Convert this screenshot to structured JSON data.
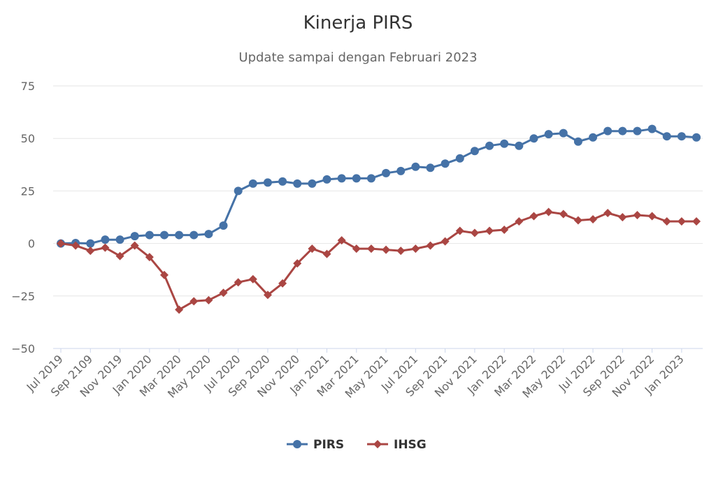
{
  "chart_data": {
    "type": "line",
    "title": "Kinerja PIRS",
    "subtitle": "Update sampai dengan Februari 2023",
    "xlabel": "",
    "ylabel": "",
    "ylim": [
      -50,
      75
    ],
    "yticks": [
      75,
      50,
      25,
      0,
      -25,
      -50
    ],
    "ytick_labels": [
      "75",
      "50",
      "25",
      "0",
      "−25",
      "−50"
    ],
    "grid": true,
    "legend_position": "bottom-center",
    "xtick_labels": [
      "Jul 2019",
      "Sep 2109",
      "Nov 2019",
      "Jan 2020",
      "Mar 2020",
      "May 2020",
      "Jul 2020",
      "Sep 2020",
      "Nov 2020",
      "Jan 2021",
      "Mar 2021",
      "May 2021",
      "Jul 2021",
      "Sep 2021",
      "Nov 2021",
      "Jan 2022",
      "Mar 2022",
      "May 2022",
      "Jul 2022",
      "Sep 2022",
      "Nov 2022",
      "Jan 2023"
    ],
    "x_count": 44,
    "series": [
      {
        "name": "PIRS",
        "color": "#4572a7",
        "marker": "circle",
        "values": [
          0,
          0.2,
          0,
          1.8,
          1.8,
          3.5,
          4,
          4,
          4,
          4,
          4.5,
          8.5,
          25,
          28.5,
          29,
          29.5,
          28.5,
          28.5,
          30.5,
          31,
          31,
          31,
          33.5,
          34.5,
          36.5,
          36,
          38,
          40.5,
          44,
          46.5,
          47.5,
          46.5,
          50,
          52,
          52.5,
          48.5,
          50.5,
          53.5,
          53.5,
          53.5,
          54.5,
          51,
          51,
          50.5
        ]
      },
      {
        "name": "IHSG",
        "color": "#aa4643",
        "marker": "diamond",
        "values": [
          0,
          -1,
          -3.5,
          -2,
          -6,
          -1,
          -6.5,
          -15,
          -31.5,
          -27.5,
          -27,
          -23.5,
          -18.5,
          -17,
          -24.5,
          -19,
          -9.5,
          -2.5,
          -5,
          1.5,
          -2.5,
          -2.5,
          -3,
          -3.5,
          -2.5,
          -1,
          1,
          6,
          5,
          6,
          6.5,
          10.5,
          13,
          15,
          14,
          11,
          11.5,
          14.5,
          12.5,
          13.5,
          13,
          10.5,
          10.5,
          10.5
        ]
      }
    ]
  }
}
